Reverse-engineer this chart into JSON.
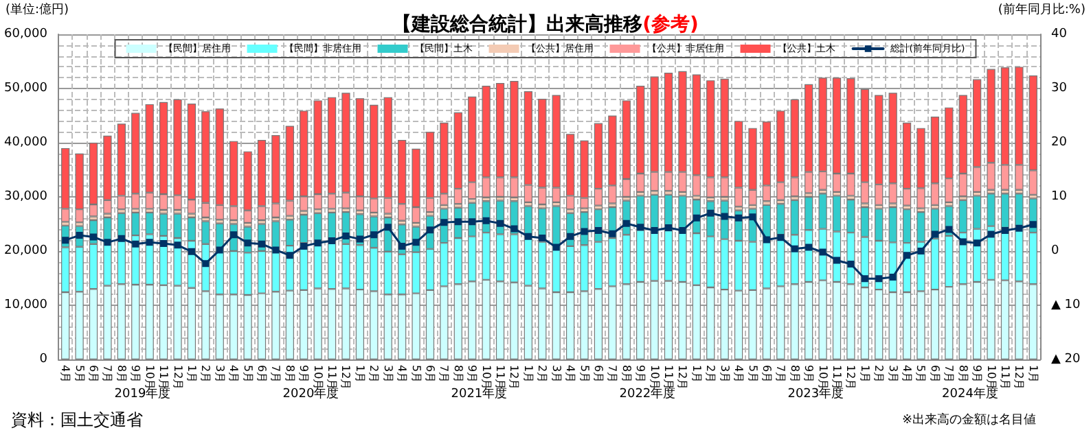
{
  "chart_data": {
    "type": "bar",
    "stacked": true,
    "title": "【建設総合統計】出来高推移",
    "subtitle": "(参考)",
    "ylabel": "(単位:億円)",
    "y2label": "(前年同月比:%)",
    "categories": [
      "4月",
      "5月",
      "6月",
      "7月",
      "8月",
      "9月",
      "10月",
      "11月",
      "12月",
      "1月",
      "2月",
      "3月",
      "4月",
      "5月",
      "6月",
      "7月",
      "8月",
      "9月",
      "10月",
      "11月",
      "12月",
      "1月",
      "2月",
      "3月",
      "4月",
      "5月",
      "6月",
      "7月",
      "8月",
      "9月",
      "10月",
      "11月",
      "12月",
      "1月",
      "2月",
      "3月",
      "4月",
      "5月",
      "6月",
      "7月",
      "8月",
      "9月",
      "10月",
      "11月",
      "12月",
      "1月",
      "2月",
      "3月",
      "4月",
      "5月",
      "6月",
      "7月",
      "8月",
      "9月",
      "10月",
      "11月",
      "12月",
      "1月",
      "2月",
      "3月",
      "4月",
      "5月",
      "6月",
      "7月",
      "8月",
      "9月",
      "10月",
      "11月",
      "12月",
      "1月"
    ],
    "series": [
      {
        "name": "【民間】居住用",
        "color": "#ccffff",
        "values": [
          12400,
          12500,
          13000,
          13600,
          13900,
          13800,
          13800,
          13700,
          13600,
          13200,
          12600,
          12000,
          12000,
          11900,
          12200,
          12500,
          12700,
          12800,
          13100,
          13000,
          13100,
          12900,
          12600,
          12000,
          12000,
          12200,
          12800,
          13500,
          13900,
          14400,
          14700,
          14400,
          14200,
          13600,
          13100,
          12400,
          12400,
          12600,
          13000,
          13500,
          13900,
          14300,
          14500,
          14500,
          14300,
          13700,
          13300,
          12900,
          12700,
          12800,
          13100,
          13500,
          13900,
          14300,
          14600,
          14300,
          13900,
          13300,
          12900,
          12400,
          12400,
          12600,
          12900,
          13400,
          13900,
          14300,
          14700,
          14600,
          14400,
          13900
        ]
      },
      {
        "name": "【民間】非居住用",
        "color": "#66ffff",
        "values": [
          8300,
          8300,
          8300,
          8300,
          8600,
          9100,
          9300,
          9100,
          8800,
          8700,
          8700,
          8200,
          8000,
          7800,
          7800,
          7900,
          8300,
          8700,
          8500,
          8500,
          8200,
          8200,
          8000,
          7900,
          7400,
          7600,
          7600,
          8000,
          8500,
          8300,
          8700,
          8700,
          8900,
          8700,
          8600,
          8700,
          8500,
          8500,
          8700,
          8900,
          9100,
          9600,
          9400,
          9300,
          9100,
          9600,
          9400,
          9300,
          9200,
          8900,
          8800,
          9500,
          9100,
          9600,
          9500,
          9300,
          9500,
          9300,
          9000,
          9200,
          9100,
          9100,
          9400,
          9400,
          9500,
          9800,
          9900,
          9700,
          10100,
          9500
        ]
      },
      {
        "name": "【民間】土木",
        "color": "#33cccc",
        "values": [
          4000,
          3800,
          4400,
          4300,
          4500,
          4200,
          4000,
          4100,
          4500,
          4300,
          4200,
          4900,
          5000,
          4800,
          5000,
          5100,
          4800,
          5200,
          5400,
          5600,
          5900,
          5700,
          5800,
          6300,
          5500,
          4700,
          6100,
          6300,
          5600,
          6200,
          5800,
          6200,
          6100,
          6000,
          6200,
          7200,
          6100,
          6100,
          6000,
          5700,
          6300,
          6300,
          6500,
          6600,
          6800,
          6200,
          6500,
          7100,
          5600,
          6100,
          6600,
          5700,
          6400,
          6100,
          6500,
          6600,
          6100,
          5500,
          5900,
          6500,
          6200,
          5500,
          5500,
          5500,
          6000,
          6100,
          6000,
          6300,
          6100,
          6300
        ]
      },
      {
        "name": "【公共】居住用",
        "color": "#f4cbb4",
        "values": [
          700,
          700,
          700,
          700,
          700,
          700,
          700,
          700,
          700,
          700,
          700,
          700,
          700,
          700,
          700,
          700,
          700,
          700,
          700,
          700,
          700,
          700,
          700,
          700,
          700,
          700,
          700,
          700,
          700,
          700,
          700,
          700,
          700,
          700,
          700,
          700,
          700,
          700,
          700,
          700,
          700,
          700,
          700,
          700,
          700,
          700,
          700,
          700,
          700,
          700,
          700,
          700,
          700,
          700,
          700,
          700,
          700,
          700,
          700,
          700,
          700,
          700,
          700,
          700,
          700,
          700,
          700,
          700,
          700,
          700
        ]
      },
      {
        "name": "【公共】非居住用",
        "color": "#ff9999",
        "values": [
          2400,
          2400,
          2200,
          2500,
          2500,
          2800,
          3000,
          2900,
          2700,
          2600,
          2700,
          2700,
          2600,
          2300,
          2600,
          2600,
          2800,
          2700,
          2800,
          2800,
          2900,
          2600,
          2600,
          2900,
          3100,
          2900,
          2600,
          2100,
          2800,
          3100,
          3700,
          3600,
          3700,
          3200,
          3100,
          2700,
          2500,
          1900,
          3100,
          3300,
          3300,
          3400,
          3500,
          3500,
          3700,
          3800,
          3700,
          3600,
          3500,
          2800,
          2900,
          3300,
          3500,
          3900,
          3400,
          3400,
          4100,
          3900,
          3800,
          3700,
          3100,
          3700,
          4000,
          4400,
          4200,
          4600,
          5000,
          4600,
          4600,
          4500
        ]
      },
      {
        "name": "【公共】土木",
        "color": "#ff5050",
        "values": [
          11200,
          10300,
          11400,
          11900,
          13300,
          14900,
          16300,
          17000,
          17700,
          17700,
          16900,
          17800,
          12000,
          10900,
          12200,
          12600,
          13800,
          15800,
          17300,
          17800,
          18400,
          18100,
          17300,
          18600,
          11800,
          10800,
          12200,
          13100,
          14100,
          15800,
          16900,
          17400,
          17800,
          17300,
          16400,
          17100,
          11400,
          10600,
          12100,
          12900,
          14500,
          16200,
          17600,
          18300,
          18600,
          18600,
          17900,
          18200,
          12300,
          11400,
          11800,
          13200,
          14400,
          16200,
          17300,
          17700,
          17600,
          17200,
          16500,
          16700,
          12200,
          11100,
          12300,
          13100,
          14500,
          16200,
          17300,
          18000,
          18100,
          17500
        ]
      },
      {
        "name": "総計(前年同月比)",
        "type": "line",
        "axis": "y2",
        "color": "#003366",
        "marker": "square",
        "values": [
          2.0,
          2.9,
          2.6,
          1.6,
          2.3,
          1.3,
          1.6,
          1.4,
          1.1,
          -0.1,
          -2.3,
          0.2,
          3.0,
          1.5,
          1.3,
          0.2,
          -0.8,
          0.9,
          1.5,
          1.9,
          2.8,
          2.2,
          3.0,
          4.4,
          0.9,
          1.6,
          3.9,
          5.3,
          5.4,
          5.4,
          5.6,
          5.1,
          4.1,
          2.7,
          2.4,
          0.7,
          2.7,
          3.6,
          3.8,
          3.2,
          5.1,
          4.4,
          3.8,
          4.3,
          3.8,
          6.1,
          7.0,
          6.4,
          6.1,
          6.3,
          2.1,
          2.5,
          0.4,
          0.7,
          -0.2,
          -1.7,
          -2.4,
          -5.1,
          -5.1,
          -4.8,
          -0.8,
          0,
          3.1,
          4.0,
          1.7,
          1.5,
          3.1,
          3.8,
          4.2,
          4.9
        ]
      }
    ],
    "ylim": [
      0,
      60000
    ],
    "yticks": [
      0,
      {
        "value": 10000,
        "label": "10,000"
      },
      {
        "value": 20000,
        "label": "20,000"
      },
      {
        "value": 30000,
        "label": "30,000"
      },
      {
        "value": 40000,
        "label": "40,000"
      },
      {
        "value": 50000,
        "label": "50,000"
      },
      {
        "value": 60000,
        "label": "60,000"
      }
    ],
    "y2lim": [
      -20,
      40
    ],
    "y2ticks": [
      {
        "value": -20,
        "label": "▲ 20"
      },
      {
        "value": -10,
        "label": "▲ 10"
      },
      0,
      10,
      20,
      30,
      40
    ],
    "grid": true,
    "legend": "top",
    "annotations": [
      "2019年度",
      "2020年度",
      "2021年度",
      "2022年度",
      "2023年度",
      "2024年度",
      "資料：国土交通省",
      "※出来高の金額は名目値"
    ]
  }
}
